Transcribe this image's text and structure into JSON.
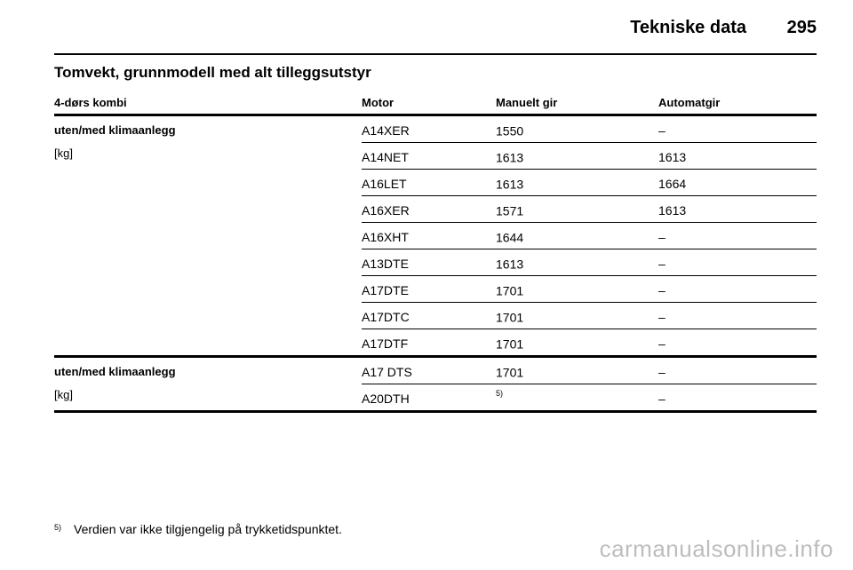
{
  "header": {
    "title": "Tekniske data",
    "page_number": "295"
  },
  "section_title": "Tomvekt, grunnmodell med alt tilleggsutstyr",
  "table": {
    "columns": [
      "4-dørs kombi",
      "Motor",
      "Manuelt gir",
      "Automatgir"
    ],
    "groups": [
      {
        "label": "uten/med klimaanlegg",
        "unit": "[kg]",
        "rows": [
          {
            "motor": "A14XER",
            "manual": "1550",
            "manual_note": "",
            "auto": "–"
          },
          {
            "motor": "A14NET",
            "manual": "1613",
            "manual_note": "",
            "auto": "1613"
          },
          {
            "motor": "A16LET",
            "manual": "1613",
            "manual_note": "",
            "auto": "1664"
          },
          {
            "motor": "A16XER",
            "manual": "1571",
            "manual_note": "",
            "auto": "1613"
          },
          {
            "motor": "A16XHT",
            "manual": "1644",
            "manual_note": "",
            "auto": "–"
          },
          {
            "motor": "A13DTE",
            "manual": "1613",
            "manual_note": "",
            "auto": "–"
          },
          {
            "motor": "A17DTE",
            "manual": "1701",
            "manual_note": "",
            "auto": "–"
          },
          {
            "motor": "A17DTC",
            "manual": "1701",
            "manual_note": "",
            "auto": "–"
          },
          {
            "motor": "A17DTF",
            "manual": "1701",
            "manual_note": "",
            "auto": "–"
          }
        ]
      },
      {
        "label": "uten/med klimaanlegg",
        "unit": "[kg]",
        "rows": [
          {
            "motor": "A17 DTS",
            "manual": "1701",
            "manual_note": "",
            "auto": "–"
          },
          {
            "motor": "A20DTH",
            "manual": "",
            "manual_note": "5)",
            "auto": "–"
          }
        ]
      }
    ]
  },
  "footnote": {
    "mark": "5)",
    "text": "Verdien var ikke tilgjengelig på trykketidspunktet."
  },
  "watermark": "carmanualsonline.info"
}
